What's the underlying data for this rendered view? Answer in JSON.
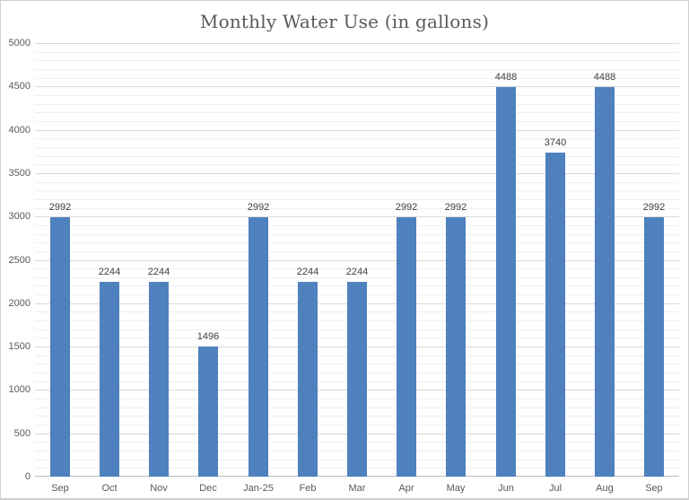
{
  "chart_data": {
    "type": "bar",
    "title": "Monthly Water Use (in gallons)",
    "categories": [
      "Sep",
      "Oct",
      "Nov",
      "Dec",
      "Jan-25",
      "Feb",
      "Mar",
      "Apr",
      "May",
      "Jun",
      "Jul",
      "Aug",
      "Sep"
    ],
    "values": [
      2992,
      2244,
      2244,
      1496,
      2992,
      2244,
      2244,
      2992,
      2992,
      4488,
      3740,
      4488,
      2992
    ],
    "data_labels": [
      "2992",
      "2244",
      "2244",
      "1496",
      "2992",
      "2244",
      "2244",
      "2992",
      "2992",
      "4488",
      "3740",
      "4488",
      "2992"
    ],
    "xlabel": "",
    "ylabel": "",
    "ylim": [
      0,
      5000
    ],
    "y_major_unit": 500,
    "y_minor_unit": 100,
    "y_tick_labels": [
      "0",
      "500",
      "1000",
      "1500",
      "2000",
      "2500",
      "3000",
      "3500",
      "4000",
      "4500",
      "5000"
    ],
    "legend": "none",
    "grid": "horizontal major+minor",
    "colors": {
      "bar": "#4E81BD",
      "major_gridline": "#D8D8D8",
      "minor_gridline": "#ECEFF7",
      "axis_line": "#BDBDBD",
      "title_text": "#595959",
      "tick_text": "#595959",
      "data_label_text": "#404040",
      "frame_border": "#CFCFCF",
      "background": "#FFFFFF"
    }
  }
}
